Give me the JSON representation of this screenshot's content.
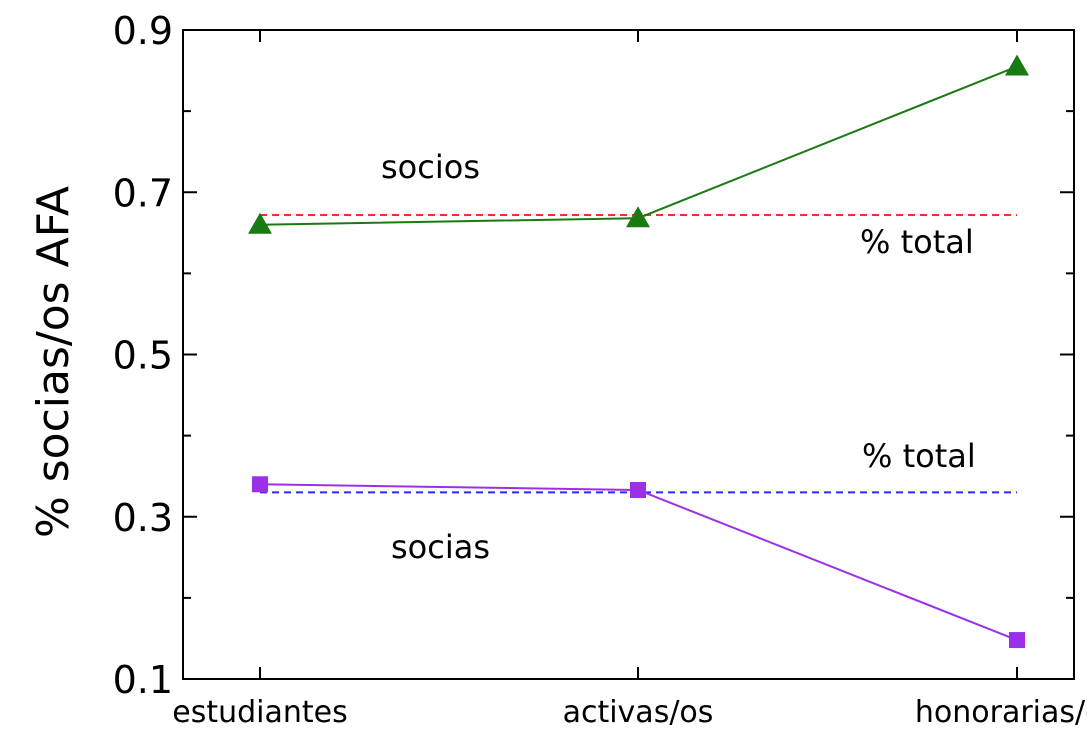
{
  "chart_data": {
    "type": "line",
    "categories": [
      "estudiantes",
      "activas/os",
      "honorarias/os"
    ],
    "ylabel": "% socias/os AFA",
    "xlabel": "",
    "ylim": [
      0.1,
      0.9
    ],
    "yticks": [
      "0.1",
      "0.3",
      "0.5",
      "0.7",
      "0.9"
    ],
    "grid": false,
    "series": [
      {
        "name": "socios",
        "color": "#1a7a12",
        "marker": "triangle",
        "values": [
          0.66,
          0.668,
          0.855
        ]
      },
      {
        "name": "socias",
        "color": "#9b30e8",
        "marker": "square",
        "values": [
          0.34,
          0.333,
          0.148
        ]
      }
    ],
    "reference_lines": [
      {
        "label": "% total",
        "value": 0.672,
        "color": "#ff2a2a",
        "style": "dashed"
      },
      {
        "label": "% total",
        "value": 0.33,
        "color": "#2a2aff",
        "style": "dashed"
      }
    ]
  }
}
